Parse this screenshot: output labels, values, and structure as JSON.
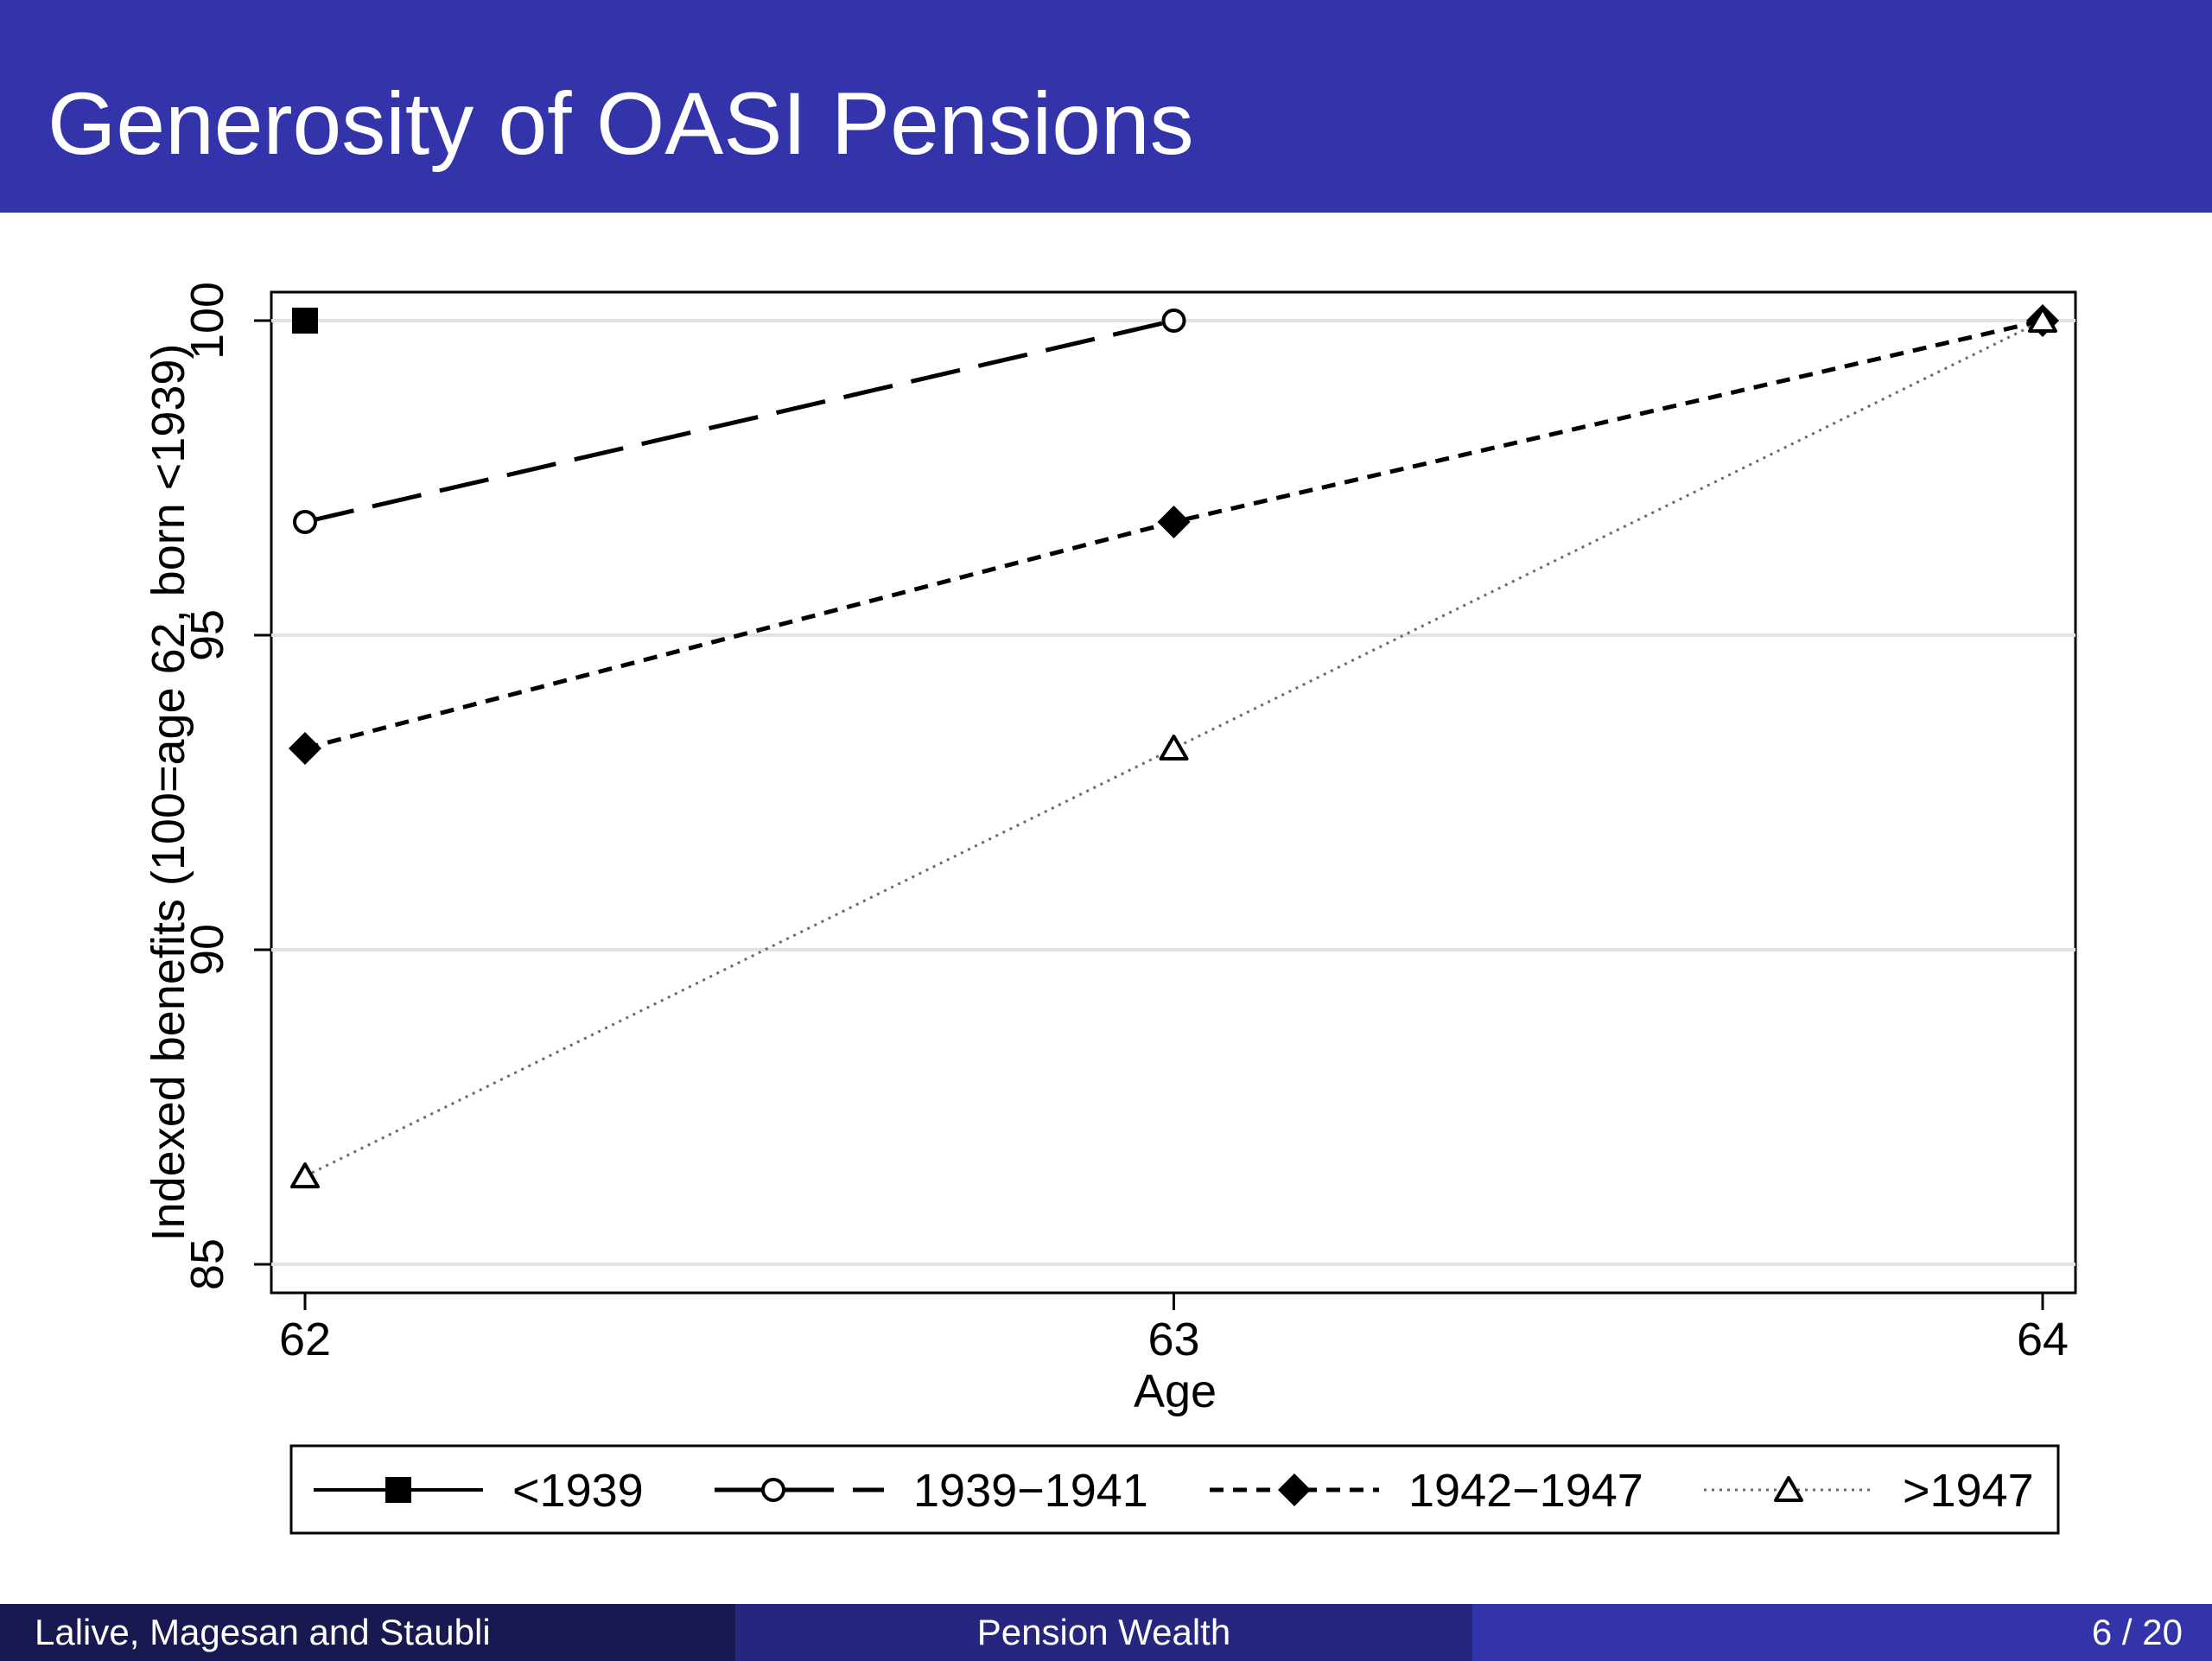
{
  "slide": {
    "title": "Generosity of OASI Pensions",
    "footer": {
      "authors": "Lalive, Magesan and Staubli",
      "short_title": "Pension Wealth",
      "page": "6 / 20"
    },
    "colors": {
      "header_bg": "#3333aa",
      "footer_left_bg": "#191952",
      "footer_mid_bg": "#26267e",
      "footer_right_bg": "#3333aa"
    }
  },
  "chart_data": {
    "type": "line",
    "title": "",
    "xlabel": "Age",
    "ylabel": "Indexed benefits (100=age 62, born <1939)",
    "xlim": [
      62,
      64
    ],
    "ylim": [
      85,
      100
    ],
    "xticks": [
      "62",
      "63",
      "64"
    ],
    "yticks": [
      "85",
      "90",
      "95",
      "100"
    ],
    "grid": true,
    "legend_position": "bottom",
    "series": [
      {
        "name": "<1939",
        "line_style": "solid",
        "marker": "filled-square",
        "points": [
          {
            "x": 62,
            "y": 100
          }
        ]
      },
      {
        "name": "1939−1941",
        "line_style": "long-dash",
        "marker": "hollow-circle",
        "points": [
          {
            "x": 62,
            "y": 96.8
          },
          {
            "x": 63,
            "y": 100
          }
        ]
      },
      {
        "name": "1942−1947",
        "line_style": "short-dash",
        "marker": "filled-diamond",
        "points": [
          {
            "x": 62,
            "y": 93.2
          },
          {
            "x": 63,
            "y": 96.8
          },
          {
            "x": 64,
            "y": 100
          }
        ]
      },
      {
        "name": ">1947",
        "line_style": "dotted",
        "marker": "hollow-triangle",
        "points": [
          {
            "x": 62,
            "y": 86.4
          },
          {
            "x": 63,
            "y": 93.2
          },
          {
            "x": 64,
            "y": 100
          }
        ]
      }
    ]
  }
}
